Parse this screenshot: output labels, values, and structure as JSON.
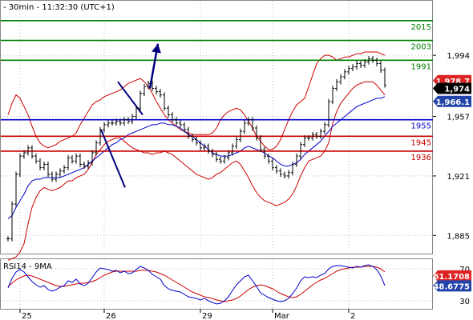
{
  "header": {
    "title": "- 30min - 11:32:30 (UTC+1)"
  },
  "rsi_title": "RSI14 - 9MA",
  "colors": {
    "support": "#cc0000",
    "resistance": "#008000",
    "pivot": "#0000cc",
    "channel": "#000080",
    "bands": "#cc0000",
    "ma": "#0000cc",
    "candles": "#000000"
  },
  "chart_data": [
    {
      "type": "line",
      "title": "",
      "x_tick_labels": [
        "25",
        "26",
        "29",
        "Mar",
        "2"
      ],
      "y_tick_labels": [
        "1,994",
        "1,957",
        "1,921",
        "1,885"
      ],
      "ylim": [
        1874,
        2027
      ],
      "grid": "dotted",
      "levels": [
        {
          "label": "2015",
          "value": 2015,
          "role": "resistance"
        },
        {
          "label": "2003",
          "value": 2003,
          "role": "resistance"
        },
        {
          "label": "1991",
          "value": 1991,
          "role": "resistance"
        },
        {
          "label": "1955",
          "value": 1955,
          "role": "pivot"
        },
        {
          "label": "1945",
          "value": 1945,
          "role": "support"
        },
        {
          "label": "1936",
          "value": 1936,
          "role": "support"
        }
      ],
      "tags": [
        {
          "label": "1,978.7",
          "value": 1978.7,
          "color": "#dd2222"
        },
        {
          "label": "1,974",
          "value": 1974,
          "color": "#000000"
        },
        {
          "label": "1,966.1",
          "value": 1966.1,
          "color": "#2244aa"
        }
      ],
      "channel": {
        "upper": [
          [
            27.4,
            1978
          ],
          [
            33.6,
            1958
          ]
        ],
        "lower": [
          [
            23.2,
            1949
          ],
          [
            29.2,
            1914
          ]
        ]
      },
      "arrow": [
        [
          35.4,
          1974
        ],
        [
          37.4,
          2001
        ]
      ],
      "close": [
        1883,
        1904,
        1922,
        1933,
        1935,
        1938,
        1933,
        1930,
        1926,
        1928,
        1922,
        1919,
        1922,
        1924,
        1926,
        1932,
        1930,
        1933,
        1928,
        1927,
        1929,
        1935,
        1941,
        1949,
        1952,
        1953,
        1953,
        1954,
        1953,
        1955,
        1954,
        1957,
        1962,
        1971,
        1975,
        1977,
        1974,
        1972,
        1970,
        1962,
        1958,
        1955,
        1953,
        1952,
        1949,
        1945,
        1943,
        1941,
        1938,
        1939,
        1936,
        1934,
        1931,
        1930,
        1932,
        1935,
        1939,
        1943,
        1948,
        1953,
        1955,
        1950,
        1944,
        1937,
        1933,
        1930,
        1926,
        1924,
        1922,
        1921,
        1923,
        1928,
        1933,
        1940,
        1944,
        1944,
        1946,
        1945,
        1948,
        1952,
        1966,
        1974,
        1978,
        1981,
        1984,
        1986,
        1987,
        1989,
        1988,
        1990,
        1992,
        1991,
        1989,
        1985,
        1976
      ],
      "upper_band": [
        1958,
        1965,
        1970,
        1968,
        1963,
        1958,
        1951,
        1945,
        1941,
        1939,
        1938,
        1939,
        1940,
        1942,
        1943,
        1944,
        1945,
        1947,
        1952,
        1956,
        1960,
        1964,
        1966,
        1967,
        1969,
        1970,
        1971,
        1972,
        1973,
        1975,
        1977,
        1978,
        1979,
        1980,
        1978,
        1975,
        1971,
        1966,
        1962,
        1958,
        1955,
        1953,
        1951,
        1949,
        1948,
        1947,
        1946,
        1946,
        1946,
        1946,
        1946,
        1947,
        1950,
        1955,
        1958,
        1960,
        1961,
        1962,
        1961,
        1958,
        1954,
        1950,
        1945,
        1942,
        1939,
        1937,
        1937,
        1939,
        1943,
        1949,
        1955,
        1960,
        1964,
        1966,
        1968,
        1975,
        1982,
        1989,
        1992,
        1994,
        1994,
        1993,
        1991,
        1992,
        1993,
        1993,
        1994,
        1995,
        1995,
        1996,
        1996,
        1996,
        1996,
        1995,
        1994
      ],
      "lower_band": [
        1870,
        1871,
        1872,
        1875,
        1880,
        1892,
        1902,
        1908,
        1912,
        1914,
        1913,
        1912,
        1913,
        1914,
        1916,
        1918,
        1918,
        1920,
        1921,
        1922,
        1925,
        1929,
        1934,
        1937,
        1940,
        1942,
        1943,
        1944,
        1944,
        1942,
        1940,
        1938,
        1937,
        1936,
        1935,
        1935,
        1934,
        1935,
        1935,
        1936,
        1935,
        1934,
        1932,
        1930,
        1928,
        1926,
        1924,
        1922,
        1921,
        1920,
        1919,
        1920,
        1922,
        1923,
        1925,
        1927,
        1929,
        1930,
        1928,
        1924,
        1920,
        1915,
        1911,
        1908,
        1906,
        1905,
        1904,
        1903,
        1904,
        1905,
        1907,
        1910,
        1915,
        1921,
        1926,
        1930,
        1931,
        1932,
        1933,
        1936,
        1941,
        1953,
        1960,
        1965,
        1968,
        1971,
        1974,
        1976,
        1977,
        1978,
        1978,
        1978,
        1976,
        1973,
        1970
      ],
      "ma": [
        1895,
        1897,
        1902,
        1906,
        1910,
        1915,
        1918,
        1919,
        1919,
        1920,
        1920,
        1920,
        1920,
        1920,
        1921,
        1922,
        1923,
        1924,
        1925,
        1926,
        1928,
        1930,
        1932,
        1934,
        1936,
        1938,
        1940,
        1941,
        1943,
        1944,
        1946,
        1947,
        1948,
        1949,
        1950,
        1951,
        1952,
        1952,
        1953,
        1953,
        1952,
        1952,
        1951,
        1950,
        1948,
        1946,
        1945,
        1943,
        1941,
        1939,
        1937,
        1935,
        1934,
        1933,
        1933,
        1933,
        1934,
        1935,
        1936,
        1938,
        1939,
        1938,
        1937,
        1936,
        1935,
        1933,
        1932,
        1930,
        1928,
        1927,
        1927,
        1928,
        1929,
        1931,
        1934,
        1936,
        1938,
        1940,
        1942,
        1945,
        1948,
        1951,
        1953,
        1955,
        1957,
        1959,
        1961,
        1963,
        1964,
        1965,
        1966,
        1967,
        1968,
        1968,
        1969
      ]
    },
    {
      "type": "line",
      "title": "RSI14 - 9MA",
      "y_tick_labels": [
        "70",
        "30"
      ],
      "ylim": [
        20,
        82
      ],
      "tags": [
        {
          "label": "61.1708",
          "value": 61.1708,
          "color": "#dd2222"
        },
        {
          "label": "48.6775",
          "value": 48.6775,
          "color": "#2244aa"
        }
      ],
      "series": [
        {
          "role": "rsi",
          "values": [
            46,
            58,
            66,
            69,
            66,
            60,
            54,
            50,
            47,
            49,
            44,
            42,
            44,
            47,
            49,
            55,
            53,
            57,
            51,
            49,
            52,
            59,
            66,
            71,
            70,
            69,
            67,
            68,
            65,
            67,
            64,
            65,
            69,
            73,
            71,
            68,
            63,
            60,
            57,
            49,
            45,
            43,
            42,
            41,
            38,
            35,
            34,
            33,
            31,
            33,
            30,
            28,
            26,
            27,
            30,
            35,
            43,
            50,
            55,
            60,
            62,
            55,
            48,
            40,
            37,
            34,
            32,
            30,
            29,
            30,
            33,
            39,
            46,
            55,
            60,
            59,
            60,
            59,
            62,
            64,
            70,
            73,
            74,
            74,
            73,
            72,
            71,
            73,
            72,
            74,
            75,
            73,
            69,
            61,
            49
          ]
        },
        {
          "role": "ma",
          "values": [
            48,
            52,
            56,
            59,
            61,
            62,
            61,
            59,
            57,
            55,
            53,
            51,
            49,
            48,
            48,
            49,
            50,
            51,
            52,
            52,
            53,
            54,
            56,
            59,
            62,
            64,
            66,
            67,
            67,
            67,
            67,
            67,
            67,
            68,
            68,
            68,
            67,
            66,
            64,
            62,
            59,
            56,
            53,
            50,
            47,
            44,
            41,
            39,
            37,
            35,
            34,
            33,
            31,
            30,
            29,
            30,
            31,
            33,
            36,
            40,
            44,
            47,
            49,
            50,
            49,
            47,
            45,
            42,
            39,
            37,
            35,
            34,
            35,
            38,
            42,
            46,
            50,
            53,
            56,
            58,
            61,
            64,
            67,
            69,
            70,
            71,
            72,
            72,
            72,
            73,
            73,
            73,
            72,
            70,
            66
          ]
        }
      ]
    }
  ]
}
